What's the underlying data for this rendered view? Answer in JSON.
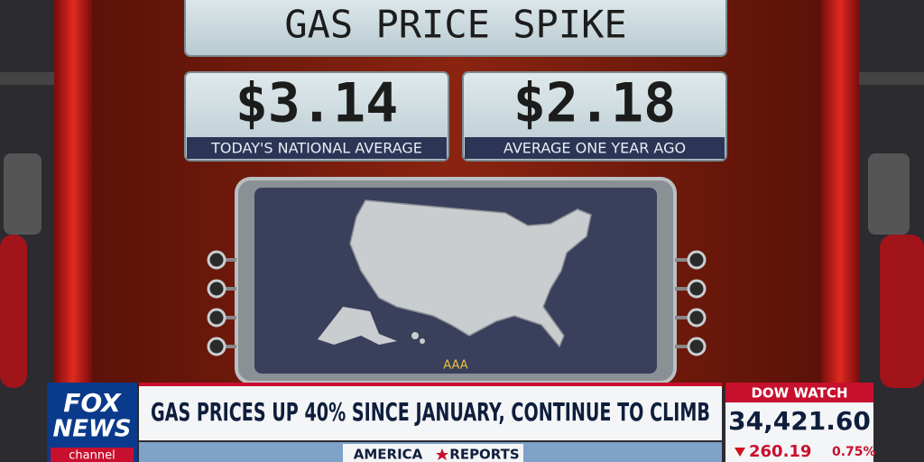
{
  "graphic": {
    "title": "GAS PRICE SPIKE",
    "prices": [
      {
        "value": "$3.14",
        "label": "TODAY'S NATIONAL AVERAGE"
      },
      {
        "value": "$2.18",
        "label": "AVERAGE ONE YEAR AGO"
      }
    ],
    "source": "AAA"
  },
  "lower_third": {
    "logo": [
      "FOX",
      "NEWS",
      "channel"
    ],
    "headline": "GAS PRICES UP 40% SINCE JANUARY, CONTINUE TO CLIMB",
    "show": [
      "AMERICA",
      "REPORTS"
    ]
  },
  "ticker": {
    "label": "DOW WATCH",
    "value": "34,421.60",
    "change": "260.19",
    "percent": "0.75%"
  }
}
